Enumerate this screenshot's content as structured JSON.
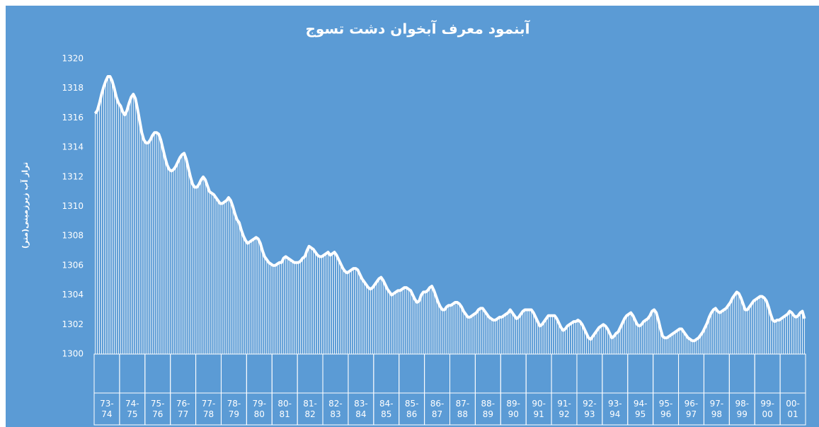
{
  "chart_data": {
    "type": "bar-line",
    "title": "آبنمود معرف آبخوان دشت تسوج",
    "y_label": "تراز آب زیرزمینی(متر)",
    "ylim": [
      1300,
      1320
    ],
    "yticks": [
      1300,
      1302,
      1304,
      1306,
      1308,
      1310,
      1312,
      1314,
      1316,
      1318,
      1320
    ],
    "color": "#ffffff",
    "background": "#5b9bd5",
    "categories": [
      "73-74",
      "74-75",
      "75-76",
      "76-77",
      "77-78",
      "78-79",
      "79-80",
      "80-81",
      "81-82",
      "82-83",
      "83-84",
      "84-85",
      "85-86",
      "86-87",
      "87-88",
      "88-89",
      "89-90",
      "90-91",
      "91-92",
      "92-93",
      "93-94",
      "94-95",
      "95-96",
      "96-97",
      "97-98",
      "98-99",
      "99-00",
      "00-01"
    ],
    "values": [
      [
        1316.3,
        1316.5,
        1317.0,
        1317.6,
        1318.1,
        1318.5,
        1318.8,
        1318.8,
        1318.5,
        1318.0,
        1317.4,
        1317.0
      ],
      [
        1316.8,
        1316.4,
        1316.2,
        1316.5,
        1317.0,
        1317.4,
        1317.6,
        1317.3,
        1316.6,
        1315.8,
        1315.0,
        1314.5
      ],
      [
        1314.3,
        1314.3,
        1314.5,
        1314.8,
        1315.0,
        1315.0,
        1314.9,
        1314.5,
        1313.9,
        1313.3,
        1312.8,
        1312.5
      ],
      [
        1312.4,
        1312.5,
        1312.7,
        1313.0,
        1313.3,
        1313.5,
        1313.6,
        1313.2,
        1312.6,
        1312.0,
        1311.5,
        1311.3
      ],
      [
        1311.3,
        1311.5,
        1311.8,
        1312.0,
        1311.8,
        1311.4,
        1311.0,
        1310.9,
        1310.8,
        1310.6,
        1310.4,
        1310.2
      ],
      [
        1310.2,
        1310.3,
        1310.4,
        1310.6,
        1310.4,
        1310.0,
        1309.5,
        1309.1,
        1308.9,
        1308.4,
        1308.0,
        1307.7
      ],
      [
        1307.5,
        1307.6,
        1307.7,
        1307.8,
        1307.9,
        1307.8,
        1307.5,
        1307.0,
        1306.6,
        1306.4,
        1306.2,
        1306.1
      ],
      [
        1306.0,
        1306.0,
        1306.1,
        1306.2,
        1306.2,
        1306.5,
        1306.6,
        1306.5,
        1306.4,
        1306.3,
        1306.2,
        1306.2
      ],
      [
        1306.2,
        1306.3,
        1306.5,
        1306.6,
        1307.0,
        1307.3,
        1307.2,
        1307.1,
        1306.9,
        1306.7,
        1306.6,
        1306.6
      ],
      [
        1306.7,
        1306.8,
        1306.9,
        1306.7,
        1306.8,
        1306.9,
        1306.7,
        1306.4,
        1306.1,
        1305.8,
        1305.6,
        1305.5
      ],
      [
        1305.6,
        1305.7,
        1305.8,
        1305.8,
        1305.7,
        1305.4,
        1305.1,
        1304.9,
        1304.7,
        1304.5,
        1304.4,
        1304.5
      ],
      [
        1304.7,
        1304.9,
        1305.1,
        1305.2,
        1305.0,
        1304.7,
        1304.4,
        1304.2,
        1304.0,
        1304.1,
        1304.2,
        1304.3
      ],
      [
        1304.3,
        1304.4,
        1304.5,
        1304.5,
        1304.4,
        1304.3,
        1304.0,
        1303.7,
        1303.5,
        1303.6,
        1304.0,
        1304.2
      ],
      [
        1304.2,
        1304.3,
        1304.5,
        1304.6,
        1304.3,
        1303.9,
        1303.5,
        1303.2,
        1303.0,
        1303.0,
        1303.2,
        1303.3
      ],
      [
        1303.3,
        1303.4,
        1303.5,
        1303.5,
        1303.4,
        1303.2,
        1302.9,
        1302.7,
        1302.5,
        1302.5,
        1302.6,
        1302.7
      ],
      [
        1302.8,
        1303.0,
        1303.1,
        1303.1,
        1302.9,
        1302.7,
        1302.5,
        1302.4,
        1302.3,
        1302.3,
        1302.4,
        1302.5
      ],
      [
        1302.5,
        1302.6,
        1302.7,
        1302.8,
        1303.0,
        1302.8,
        1302.6,
        1302.4,
        1302.5,
        1302.7,
        1302.9,
        1303.0
      ],
      [
        1303.0,
        1303.0,
        1303.0,
        1302.8,
        1302.5,
        1302.2,
        1301.9,
        1302.0,
        1302.2,
        1302.4,
        1302.6,
        1302.6
      ],
      [
        1302.6,
        1302.6,
        1302.4,
        1302.1,
        1301.8,
        1301.6,
        1301.7,
        1301.9,
        1302.0,
        1302.1,
        1302.2,
        1302.2
      ],
      [
        1302.3,
        1302.2,
        1302.0,
        1301.7,
        1301.4,
        1301.1,
        1301.0,
        1301.2,
        1301.4,
        1301.6,
        1301.8,
        1301.9
      ],
      [
        1302.0,
        1301.9,
        1301.7,
        1301.4,
        1301.1,
        1301.2,
        1301.4,
        1301.5,
        1301.8,
        1302.1,
        1302.4,
        1302.6
      ],
      [
        1302.7,
        1302.8,
        1302.6,
        1302.3,
        1302.0,
        1301.9,
        1302.0,
        1302.2,
        1302.3,
        1302.4,
        1302.6,
        1302.9
      ],
      [
        1303.0,
        1302.8,
        1302.3,
        1301.7,
        1301.2,
        1301.1,
        1301.1,
        1301.2,
        1301.3,
        1301.4,
        1301.5,
        1301.6
      ],
      [
        1301.7,
        1301.7,
        1301.5,
        1301.3,
        1301.1,
        1301.0,
        1300.9,
        1300.9,
        1301.0,
        1301.1,
        1301.3,
        1301.5
      ],
      [
        1301.8,
        1302.1,
        1302.5,
        1302.8,
        1303.0,
        1303.1,
        1302.9,
        1302.8,
        1302.9,
        1303.0,
        1303.1,
        1303.3
      ],
      [
        1303.5,
        1303.8,
        1304.0,
        1304.2,
        1304.1,
        1303.8,
        1303.4,
        1303.0,
        1303.0,
        1303.2,
        1303.4,
        1303.6
      ],
      [
        1303.7,
        1303.8,
        1303.9,
        1303.9,
        1303.8,
        1303.6,
        1303.2,
        1302.7,
        1302.3,
        1302.2,
        1302.3,
        1302.3
      ],
      [
        1302.4,
        1302.5,
        1302.6,
        1302.7,
        1302.9,
        1302.8,
        1302.6,
        1302.5,
        1302.6,
        1302.8,
        1302.9,
        1302.4
      ]
    ]
  }
}
